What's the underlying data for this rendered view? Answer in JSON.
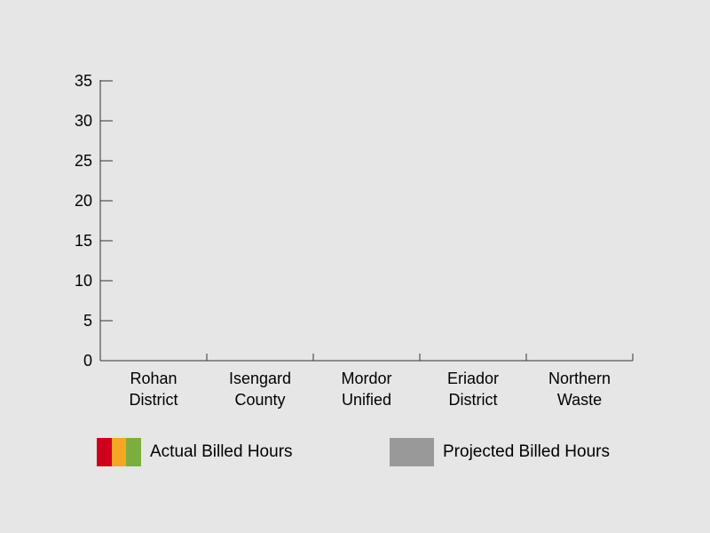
{
  "chart_data": {
    "type": "bar",
    "categories": [
      [
        "Rohan",
        "District"
      ],
      [
        "Isengard",
        "County"
      ],
      [
        "Mordor",
        "Unified"
      ],
      [
        "Eriador",
        "District"
      ],
      [
        "Northern",
        "Waste"
      ]
    ],
    "series": [
      {
        "name": "Actual Billed Hours",
        "values": [
          0,
          0,
          0,
          0,
          0
        ],
        "colors": [
          "#d0021b",
          "#f5a623",
          "#7cae3d"
        ]
      },
      {
        "name": "Projected Billed Hours",
        "values": [
          0,
          0,
          0,
          0,
          0
        ],
        "color": "#999999"
      }
    ],
    "ylim": [
      0,
      35
    ],
    "yticks": [
      0,
      5,
      10,
      15,
      20,
      25,
      30,
      35
    ],
    "grid": false,
    "legend_position": "bottom"
  }
}
